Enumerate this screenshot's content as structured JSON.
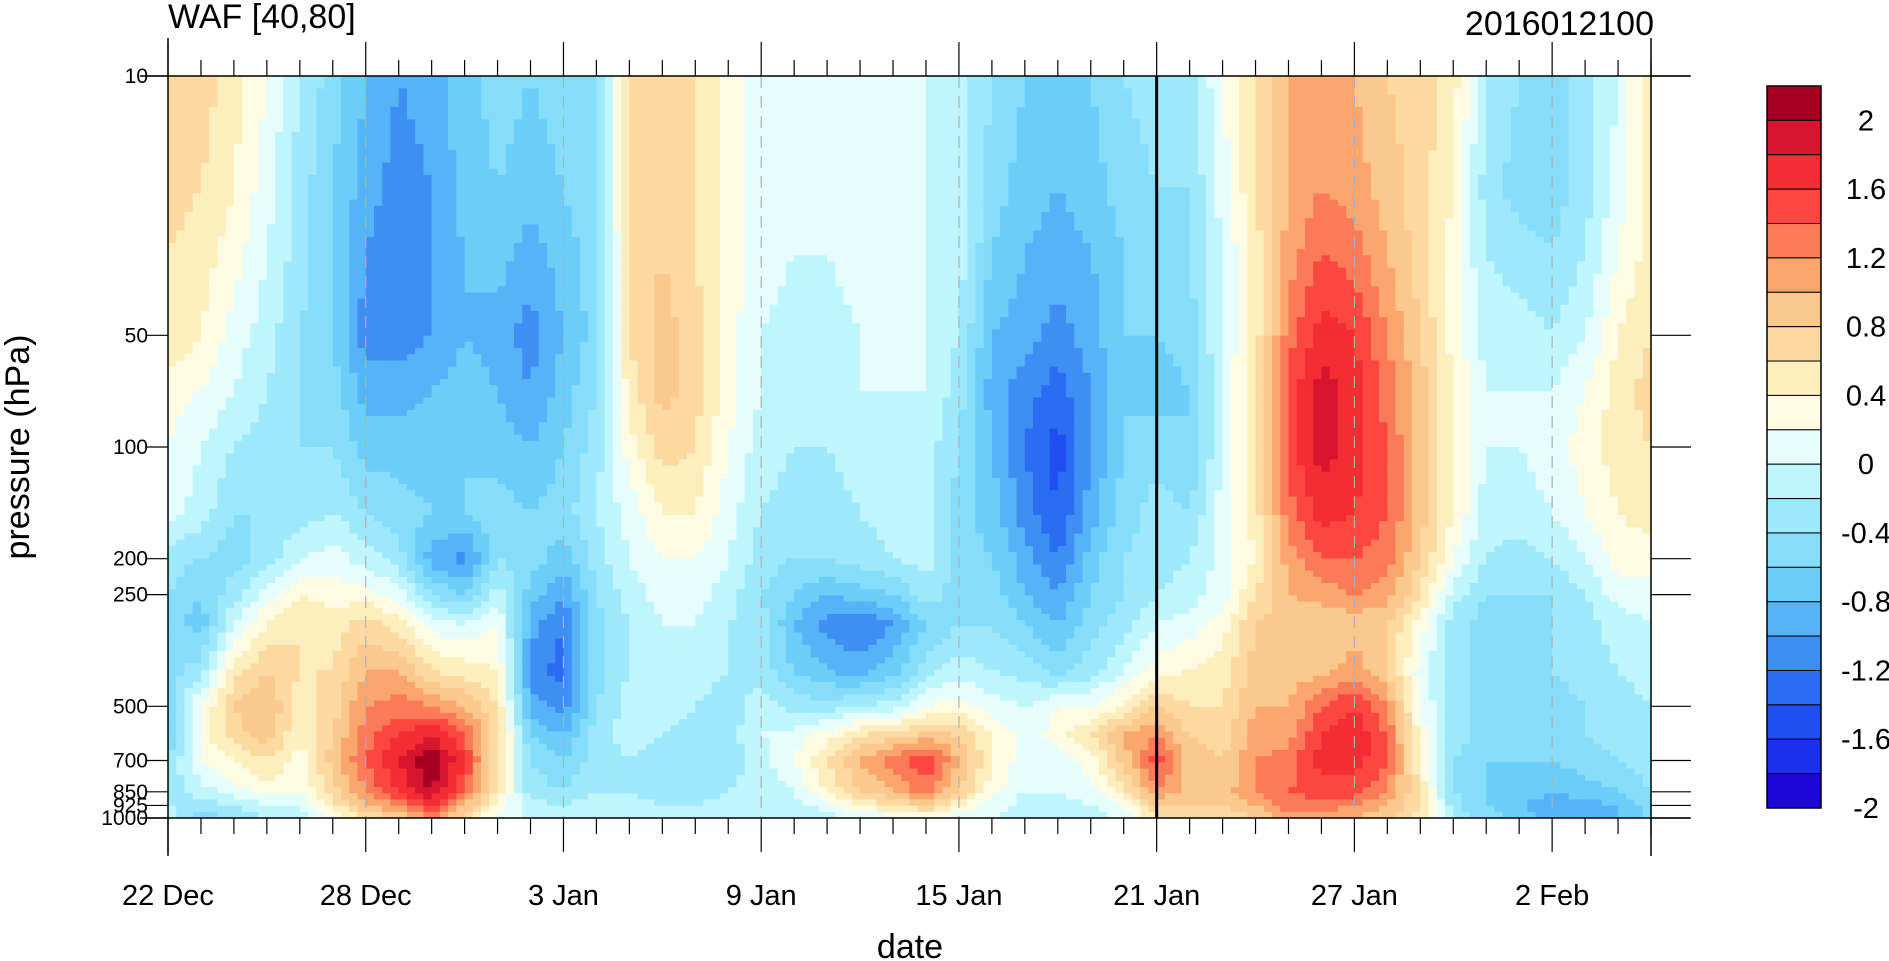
{
  "chart_data": {
    "type": "heatmap",
    "title": "WAF [40,80]",
    "subtitle": "2016012100",
    "xlabel": "date",
    "ylabel": "pressure (hPa)",
    "x_ticks": [
      "22 Dec",
      "28 Dec",
      "3 Jan",
      "9 Jan",
      "15 Jan",
      "21 Jan",
      "27 Jan",
      "2 Feb"
    ],
    "y_ticks": [
      "10",
      "50",
      "100",
      "200",
      "250",
      "500",
      "700",
      "850",
      "925",
      "1000"
    ],
    "y_scale": "log",
    "y_reversed": true,
    "xlim": [
      "22 Dec",
      "6 Feb"
    ],
    "ylim": [
      1000,
      10
    ],
    "grid": "dashed vertical lines at labeled dates",
    "reference_line": "21 Jan",
    "levels": [
      -2,
      -1.8,
      -1.6,
      -1.4,
      -1.2,
      -1,
      -0.8,
      -0.6,
      -0.4,
      -0.2,
      0,
      0.2,
      0.4,
      0.6,
      0.8,
      1,
      1.2,
      1.4,
      1.6,
      1.8,
      2
    ],
    "colorbar_labels": [
      "2",
      "1.6",
      "1.2",
      "0.8",
      "0.4",
      "0",
      "-0.4",
      "-0.8",
      "-1.2",
      "-1.6",
      "-2"
    ],
    "colorbar_colors": [
      "#a50021",
      "#d8152f",
      "#f42c33",
      "#fc4640",
      "#fb7a58",
      "#fba66d",
      "#fbc98e",
      "#fcd9a0",
      "#fdefbd",
      "#fefbe2",
      "#e6fdfe",
      "#bff5fc",
      "#9de9fb",
      "#86ddfa",
      "#6ccdf9",
      "#56b3f8",
      "#3e8ef4",
      "#2a6df2",
      "#1f4ff0",
      "#1b31ee",
      "#1c08d6"
    ],
    "x_day_index": [
      0,
      6,
      12,
      18,
      24,
      30,
      36,
      42,
      45
    ],
    "y_levels": [
      10,
      20,
      30,
      50,
      70,
      100,
      150,
      200,
      250,
      300,
      400,
      500,
      600,
      700,
      850,
      925,
      1000
    ],
    "waf_grid": [
      [
        0.8,
        0.7,
        0.6,
        0.6,
        0.3,
        0.2,
        0.1,
        -0.3,
        -0.4,
        -0.5,
        -0.5,
        -0.5,
        -0.6,
        -0.4,
        -0.3,
        -0.2,
        -0.1
      ],
      [
        0.7,
        0.6,
        0.5,
        0.4,
        0.2,
        0.0,
        -0.1,
        -0.4,
        -0.6,
        -0.7,
        -0.3,
        0.2,
        0.3,
        0.2,
        -0.1,
        -0.3,
        -0.5
      ],
      [
        0.5,
        0.4,
        0.3,
        0.1,
        0.0,
        -0.2,
        -0.4,
        -0.5,
        -0.3,
        0.0,
        0.5,
        0.8,
        0.7,
        0.4,
        0.1,
        -0.2,
        -0.4
      ],
      [
        0.2,
        0.1,
        0.0,
        -0.1,
        -0.2,
        -0.3,
        -0.4,
        -0.3,
        0.1,
        0.4,
        0.8,
        1.0,
        0.9,
        0.6,
        0.3,
        0.0,
        -0.2
      ],
      [
        -0.2,
        -0.3,
        -0.3,
        -0.4,
        -0.4,
        -0.4,
        -0.3,
        0.0,
        0.4,
        0.6,
        0.6,
        0.5,
        0.4,
        0.3,
        0.2,
        0.0,
        -0.1
      ],
      [
        -0.5,
        -0.6,
        -0.6,
        -0.6,
        -0.5,
        -0.4,
        -0.2,
        0.1,
        0.3,
        0.5,
        0.6,
        0.7,
        0.8,
        0.9,
        0.7,
        0.5,
        0.2
      ],
      [
        -0.8,
        -0.9,
        -1.0,
        -1.1,
        -0.9,
        -0.7,
        -0.4,
        -0.1,
        0.3,
        0.7,
        1.0,
        1.2,
        1.3,
        1.4,
        1.2,
        1.0,
        0.6
      ],
      [
        -1.0,
        -1.1,
        -1.2,
        -1.1,
        -0.9,
        -0.7,
        -0.5,
        -0.3,
        0.1,
        0.5,
        1.0,
        1.3,
        1.6,
        1.8,
        1.6,
        1.2,
        0.8
      ],
      [
        -0.9,
        -1.0,
        -1.0,
        -1.0,
        -0.8,
        -0.7,
        -0.6,
        -0.9,
        -0.4,
        0.1,
        0.6,
        1.2,
        1.8,
        2.2,
        2.0,
        1.6,
        1.2
      ],
      [
        -0.7,
        -0.7,
        -0.8,
        -0.8,
        -0.7,
        -0.6,
        -0.6,
        -1.1,
        -0.6,
        0.0,
        0.5,
        1.0,
        1.4,
        1.6,
        1.4,
        1.0,
        0.7
      ],
      [
        -0.5,
        -0.6,
        -0.7,
        -0.9,
        -0.8,
        -0.7,
        -0.5,
        -0.4,
        -0.1,
        0.2,
        0.4,
        0.6,
        0.7,
        0.6,
        0.5,
        0.3,
        0.1
      ],
      [
        -0.6,
        -0.7,
        -0.9,
        -1.1,
        -1.0,
        -0.8,
        -0.6,
        -0.5,
        -0.7,
        -0.9,
        -1.1,
        -0.9,
        -0.6,
        -0.4,
        -0.3,
        -0.1,
        0.0
      ],
      [
        -0.5,
        -0.6,
        -0.7,
        -0.8,
        -0.7,
        -0.6,
        -0.5,
        -0.7,
        -1.0,
        -1.2,
        -1.3,
        -1.1,
        -0.8,
        -0.6,
        -0.4,
        -0.2,
        -0.1
      ],
      [
        -0.4,
        -0.4,
        -0.5,
        -0.5,
        -0.4,
        -0.3,
        -0.2,
        -0.3,
        -0.4,
        -0.5,
        -0.5,
        -0.4,
        -0.3,
        -0.3,
        -0.2,
        -0.1,
        0.0
      ],
      [
        0.6,
        0.6,
        0.6,
        0.6,
        0.5,
        0.3,
        0.1,
        0.0,
        -0.1,
        -0.2,
        -0.2,
        -0.1,
        -0.1,
        -0.2,
        -0.2,
        -0.1,
        0.0
      ],
      [
        0.8,
        0.8,
        0.8,
        0.9,
        0.9,
        0.7,
        0.4,
        0.2,
        0.1,
        0.0,
        -0.1,
        -0.1,
        -0.2,
        -0.3,
        -0.3,
        -0.2,
        -0.1
      ],
      [
        0.6,
        0.6,
        0.6,
        0.7,
        0.7,
        0.6,
        0.4,
        0.2,
        0.1,
        0.0,
        -0.1,
        -0.2,
        -0.3,
        -0.3,
        -0.3,
        -0.2,
        -0.1
      ],
      [
        0.3,
        0.3,
        0.3,
        0.3,
        0.3,
        0.2,
        0.1,
        0.0,
        -0.1,
        -0.2,
        -0.2,
        -0.3,
        -0.3,
        -0.3,
        -0.2,
        -0.1,
        0.0
      ],
      [
        0.1,
        0.1,
        0.1,
        0.0,
        0.0,
        -0.1,
        -0.2,
        -0.3,
        -0.4,
        -0.3,
        -0.3,
        -0.1,
        0.0,
        -0.1,
        -0.1,
        -0.1,
        0.0
      ],
      [
        0.0,
        0.0,
        0.0,
        -0.1,
        -0.1,
        -0.2,
        -0.3,
        -0.4,
        -0.6,
        -0.8,
        -0.6,
        -0.3,
        0.1,
        0.2,
        0.0,
        -0.1,
        -0.1
      ],
      [
        0.0,
        0.0,
        0.0,
        -0.1,
        -0.1,
        -0.2,
        -0.3,
        -0.4,
        -0.8,
        -1.1,
        -0.8,
        -0.3,
        0.3,
        0.6,
        0.4,
        0.1,
        -0.1
      ],
      [
        0.1,
        0.1,
        0.1,
        0.0,
        0.0,
        -0.1,
        -0.2,
        -0.3,
        -0.7,
        -1.2,
        -0.9,
        -0.2,
        0.6,
        1.0,
        0.8,
        0.4,
        0.0
      ],
      [
        0.1,
        0.1,
        0.1,
        0.1,
        0.0,
        -0.1,
        -0.1,
        -0.2,
        -0.6,
        -1.0,
        -0.7,
        -0.1,
        0.7,
        1.3,
        1.0,
        0.6,
        0.1
      ],
      [
        0.0,
        0.0,
        0.0,
        0.0,
        0.0,
        -0.1,
        -0.1,
        -0.1,
        -0.3,
        -0.6,
        -0.3,
        0.2,
        0.9,
        1.6,
        1.3,
        0.8,
        0.2
      ],
      [
        -0.1,
        -0.1,
        -0.1,
        -0.2,
        -0.3,
        -0.4,
        -0.5,
        -0.5,
        -0.5,
        -0.4,
        -0.1,
        0.3,
        0.8,
        1.0,
        0.8,
        0.4,
        0.1
      ],
      [
        -0.4,
        -0.5,
        -0.6,
        -0.8,
        -0.9,
        -0.8,
        -0.7,
        -0.6,
        -0.5,
        -0.4,
        -0.2,
        0.1,
        0.4,
        0.4,
        0.3,
        0.1,
        0.0
      ],
      [
        -0.6,
        -0.7,
        -0.8,
        -0.9,
        -1.1,
        -1.2,
        -1.1,
        -0.9,
        -0.8,
        -0.6,
        -0.3,
        0.0,
        0.1,
        0.1,
        0.0,
        -0.1,
        -0.1
      ],
      [
        -0.7,
        -0.8,
        -0.9,
        -1.1,
        -1.3,
        -1.5,
        -1.4,
        -1.2,
        -1.0,
        -0.8,
        -0.5,
        0.2,
        0.3,
        0.1,
        0.0,
        -0.1,
        -0.1
      ],
      [
        -0.6,
        -0.7,
        -0.8,
        -0.9,
        -1.0,
        -1.0,
        -0.9,
        -0.7,
        -0.6,
        -0.5,
        -0.3,
        0.2,
        0.6,
        0.3,
        0.1,
        0.0,
        -0.1
      ],
      [
        -0.4,
        -0.5,
        -0.6,
        -0.6,
        -0.6,
        -0.6,
        -0.5,
        -0.4,
        -0.4,
        -0.3,
        0.0,
        0.4,
        1.0,
        0.9,
        0.5,
        0.2,
        0.0
      ],
      [
        -0.3,
        -0.4,
        -0.5,
        -0.6,
        -0.7,
        -0.5,
        -0.3,
        -0.3,
        -0.2,
        0.0,
        0.3,
        0.8,
        1.2,
        1.5,
        1.2,
        0.8,
        0.6
      ],
      [
        -0.3,
        -0.4,
        -0.4,
        -0.5,
        -0.6,
        -0.6,
        -0.4,
        -0.2,
        -0.1,
        0.1,
        0.4,
        0.6,
        0.8,
        0.9,
        0.9,
        0.8,
        0.6
      ],
      [
        0.2,
        0.1,
        0.0,
        0.0,
        0.0,
        0.0,
        0.1,
        0.1,
        0.1,
        0.3,
        0.5,
        0.6,
        0.7,
        0.8,
        0.9,
        0.8,
        0.6
      ],
      [
        0.6,
        0.6,
        0.5,
        0.5,
        0.6,
        0.6,
        0.5,
        0.4,
        0.6,
        0.8,
        0.9,
        1.0,
        1.1,
        1.2,
        1.2,
        1.0,
        0.8
      ],
      [
        1.0,
        1.0,
        1.1,
        1.3,
        1.5,
        1.5,
        1.3,
        1.1,
        1.0,
        0.9,
        0.9,
        1.0,
        1.1,
        1.3,
        1.4,
        1.3,
        1.1
      ],
      [
        1.2,
        1.2,
        1.4,
        1.7,
        1.9,
        1.9,
        1.7,
        1.4,
        1.1,
        0.8,
        0.9,
        1.4,
        1.6,
        1.7,
        1.5,
        1.3,
        1.1
      ],
      [
        1.0,
        1.1,
        1.3,
        1.6,
        1.7,
        1.7,
        1.6,
        1.4,
        1.2,
        0.9,
        1.1,
        1.6,
        1.8,
        1.7,
        1.5,
        1.2,
        1.0
      ],
      [
        0.8,
        0.9,
        1.0,
        1.2,
        1.3,
        1.4,
        1.4,
        1.3,
        1.1,
        0.8,
        0.8,
        1.2,
        1.4,
        1.4,
        1.2,
        1.0,
        0.8
      ],
      [
        0.7,
        0.7,
        0.7,
        0.8,
        0.9,
        0.9,
        0.9,
        0.8,
        0.6,
        0.3,
        0.1,
        0.2,
        0.3,
        0.4,
        0.6,
        0.6,
        0.5
      ],
      [
        0.5,
        0.4,
        0.3,
        0.3,
        0.4,
        0.4,
        0.4,
        0.2,
        -0.1,
        -0.3,
        -0.3,
        -0.3,
        -0.3,
        -0.4,
        -0.4,
        -0.3,
        -0.3
      ],
      [
        -0.2,
        -0.3,
        -0.2,
        -0.1,
        0.0,
        0.0,
        -0.1,
        -0.2,
        -0.4,
        -0.5,
        -0.5,
        -0.5,
        -0.5,
        -0.6,
        -0.6,
        -0.6,
        -0.5
      ],
      [
        -0.4,
        -0.5,
        -0.3,
        -0.1,
        0.0,
        0.0,
        -0.1,
        -0.3,
        -0.4,
        -0.5,
        -0.5,
        -0.5,
        -0.5,
        -0.6,
        -0.7,
        -0.8,
        -0.7
      ],
      [
        -0.5,
        -0.5,
        -0.4,
        -0.2,
        0.0,
        0.1,
        0.0,
        -0.2,
        -0.4,
        -0.4,
        -0.4,
        -0.5,
        -0.5,
        -0.6,
        -0.8,
        -0.9,
        -0.9
      ],
      [
        -0.3,
        -0.3,
        -0.2,
        0.0,
        0.2,
        0.3,
        0.2,
        0.0,
        -0.2,
        -0.3,
        -0.3,
        -0.4,
        -0.4,
        -0.5,
        -0.7,
        -0.9,
        -0.9
      ],
      [
        0.0,
        0.1,
        0.2,
        0.4,
        0.5,
        0.5,
        0.4,
        0.3,
        0.1,
        -0.1,
        -0.2,
        -0.3,
        -0.3,
        -0.4,
        -0.6,
        -0.8,
        -0.8
      ],
      [
        0.6,
        0.5,
        0.5,
        0.6,
        0.7,
        0.6,
        0.5,
        0.3,
        0.1,
        0.0,
        -0.1,
        -0.2,
        -0.3,
        -0.3,
        -0.4,
        -0.5,
        -0.5
      ]
    ]
  }
}
